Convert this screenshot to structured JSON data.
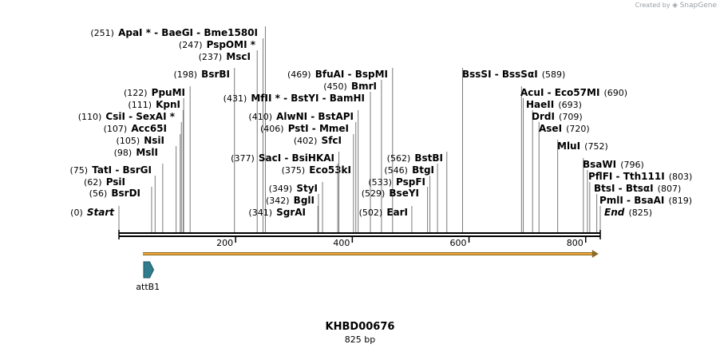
{
  "header": {
    "credit_prefix": "Created by",
    "credit_brand": "SnapGene"
  },
  "map": {
    "name": "KHBD00676",
    "length_label": "825 bp",
    "total_bp": 825,
    "ticks": [
      200,
      400,
      600,
      800
    ],
    "features": [
      {
        "name": "attB1",
        "start": 41,
        "end": 65,
        "color": "#2e7c8c"
      },
      {
        "name": "orf-arrow",
        "start": 41,
        "end": 822,
        "color": "#f0a830"
      }
    ],
    "sites": [
      {
        "pos": "(0)",
        "label": "Start",
        "bp": 0,
        "italic": true,
        "side": "left"
      },
      {
        "pos": "(56)",
        "label": "BsrDI",
        "bp": 56,
        "side": "left"
      },
      {
        "pos": "(62)",
        "label": "PsiI",
        "bp": 62,
        "side": "left"
      },
      {
        "pos": "(75)",
        "label": "TatI  -  BsrGI",
        "bp": 75,
        "side": "left"
      },
      {
        "pos": "(98)",
        "label": "MslI",
        "bp": 98,
        "side": "left"
      },
      {
        "pos": "(105)",
        "label": "NsiI",
        "bp": 105,
        "side": "left"
      },
      {
        "pos": "(107)",
        "label": "Acc65I",
        "bp": 107,
        "side": "left"
      },
      {
        "pos": "(110)",
        "label": "CsiI  -  SexAI *",
        "bp": 110,
        "side": "left"
      },
      {
        "pos": "(111)",
        "label": "KpnI",
        "bp": 111,
        "side": "left"
      },
      {
        "pos": "(122)",
        "label": "PpuMI",
        "bp": 122,
        "side": "left"
      },
      {
        "pos": "(198)",
        "label": "BsrBI",
        "bp": 198,
        "side": "left"
      },
      {
        "pos": "(237)",
        "label": "MscI",
        "bp": 237,
        "side": "left"
      },
      {
        "pos": "(247)",
        "label": "PspOMI *",
        "bp": 247,
        "side": "left"
      },
      {
        "pos": "(251)",
        "label": "ApaI *  -  BaeGI  -  Bme1580I",
        "bp": 251,
        "side": "left"
      },
      {
        "pos": "(341)",
        "label": "SgrAI",
        "bp": 341,
        "side": "left"
      },
      {
        "pos": "(342)",
        "label": "BglI",
        "bp": 342,
        "side": "left"
      },
      {
        "pos": "(349)",
        "label": "StyI",
        "bp": 349,
        "side": "left"
      },
      {
        "pos": "(375)",
        "label": "Eco53kI",
        "bp": 375,
        "side": "left"
      },
      {
        "pos": "(377)",
        "label": "SacI  -  BsiHKAI",
        "bp": 377,
        "side": "left"
      },
      {
        "pos": "(402)",
        "label": "SfcI",
        "bp": 402,
        "side": "left"
      },
      {
        "pos": "(406)",
        "label": "PstI  -  MmeI",
        "bp": 406,
        "side": "left"
      },
      {
        "pos": "(410)",
        "label": "AlwNI  -  BstAPI",
        "bp": 410,
        "side": "left"
      },
      {
        "pos": "(431)",
        "label": "MfII *  -  BstYI  -  BamHI",
        "bp": 431,
        "side": "left"
      },
      {
        "pos": "(450)",
        "label": "BmrI",
        "bp": 450,
        "side": "left"
      },
      {
        "pos": "(469)",
        "label": "BfuAI  -  BspMI",
        "bp": 469,
        "side": "left"
      },
      {
        "pos": "(502)",
        "label": "EarI",
        "bp": 502,
        "side": "left"
      },
      {
        "pos": "(529)",
        "label": "BseYI",
        "bp": 529,
        "side": "left"
      },
      {
        "pos": "(533)",
        "label": "PspFI",
        "bp": 533,
        "side": "left"
      },
      {
        "pos": "(546)",
        "label": "BtgI",
        "bp": 546,
        "side": "left"
      },
      {
        "pos": "(562)",
        "label": "BstBI",
        "bp": 562,
        "side": "left"
      },
      {
        "pos": "(589)",
        "label": "BssSI  -  BssSαI",
        "bp": 589,
        "side": "right"
      },
      {
        "pos": "(690)",
        "label": "AcuI  -  Eco57MI",
        "bp": 690,
        "side": "right"
      },
      {
        "pos": "(693)",
        "label": "HaeII",
        "bp": 693,
        "side": "right"
      },
      {
        "pos": "(709)",
        "label": "DrdI",
        "bp": 709,
        "side": "right"
      },
      {
        "pos": "(720)",
        "label": "AseI",
        "bp": 720,
        "side": "right"
      },
      {
        "pos": "(752)",
        "label": "MluI",
        "bp": 752,
        "side": "right"
      },
      {
        "pos": "(796)",
        "label": "BsaWI",
        "bp": 796,
        "side": "right"
      },
      {
        "pos": "(803)",
        "label": "PflFI  -  Tth111I",
        "bp": 803,
        "side": "right"
      },
      {
        "pos": "(807)",
        "label": "BtsI  -  BtsαI",
        "bp": 807,
        "side": "right"
      },
      {
        "pos": "(819)",
        "label": "PmlI  -  BsaAI",
        "bp": 819,
        "side": "right"
      },
      {
        "pos": "(825)",
        "label": "End",
        "bp": 825,
        "italic": true,
        "side": "right"
      }
    ]
  }
}
